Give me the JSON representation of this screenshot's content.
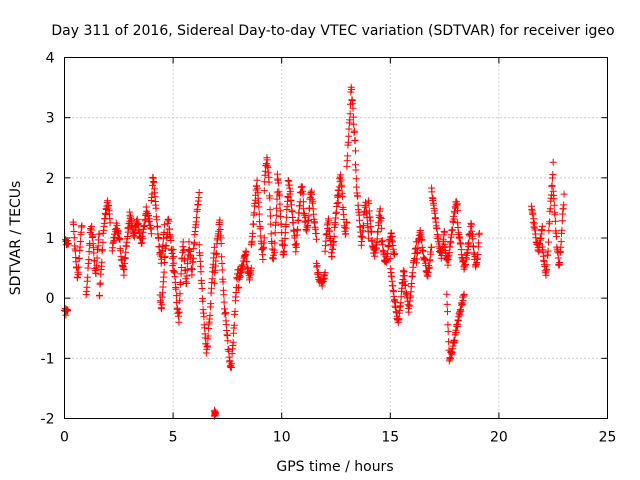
{
  "chart_data": {
    "type": "scatter",
    "title": "Day 311 of 2016, Sidereal Day-to-day VTEC variation (SDTVAR) for receiver igeo",
    "xlabel": "GPS time / hours",
    "ylabel": "SDTVAR / TECUs",
    "xlim": [
      0,
      25
    ],
    "ylim": [
      -2,
      4
    ],
    "xticks": [
      0,
      5,
      10,
      15,
      20,
      25
    ],
    "yticks": [
      -2,
      -1,
      0,
      1,
      2,
      3,
      4
    ],
    "grid": true,
    "marker": "plus",
    "color": "#ff0000",
    "segments": [
      {
        "x0": 0.0,
        "x1": 0.15,
        "y": [
          -0.22,
          -0.25
        ]
      },
      {
        "x0": 0.05,
        "x1": 0.18,
        "y": [
          0.95,
          0.9
        ]
      },
      {
        "x0": 0.4,
        "x1": 0.8,
        "y": [
          1.3,
          0.9,
          0.6,
          0.3,
          0.6,
          0.95,
          1.2
        ]
      },
      {
        "x0": 1.0,
        "x1": 1.6,
        "y": [
          0.1,
          0.4,
          0.9,
          1.2,
          1.0,
          0.6,
          0.4,
          0.8,
          1.1
        ]
      },
      {
        "x0": 1.6,
        "x1": 2.1,
        "y": [
          0.0,
          0.4,
          0.8,
          1.2,
          1.4,
          1.6,
          1.5,
          1.3
        ]
      },
      {
        "x0": 2.2,
        "x1": 3.0,
        "y": [
          0.8,
          1.0,
          1.2,
          1.1,
          0.9,
          0.6,
          0.4,
          0.8,
          1.1,
          1.3
        ]
      },
      {
        "x0": 3.0,
        "x1": 4.0,
        "y": [
          1.4,
          1.2,
          1.0,
          1.3,
          1.1,
          0.9,
          1.2,
          1.5,
          1.3,
          1.1
        ]
      },
      {
        "x0": 4.0,
        "x1": 4.6,
        "y": [
          1.6,
          2.0,
          1.8,
          1.4,
          1.1,
          0.8,
          0.6,
          0.9,
          1.2
        ]
      },
      {
        "x0": 4.4,
        "x1": 5.0,
        "y": [
          0.0,
          -0.2,
          0.3,
          0.7,
          1.0,
          1.3,
          1.1,
          0.8,
          0.5
        ]
      },
      {
        "x0": 5.0,
        "x1": 5.6,
        "y": [
          0.8,
          0.4,
          0.1,
          -0.2,
          -0.4,
          0.2,
          0.6,
          0.9,
          0.6,
          0.3
        ]
      },
      {
        "x0": 5.6,
        "x1": 6.2,
        "y": [
          0.2,
          0.6,
          0.9,
          0.7,
          0.4,
          0.7,
          1.0,
          1.3,
          1.5,
          1.7
        ]
      },
      {
        "x0": 6.2,
        "x1": 6.9,
        "y": [
          0.9,
          0.5,
          0.1,
          -0.3,
          -0.7,
          -0.9,
          -0.6,
          -0.3,
          0.1,
          0.5,
          0.8
        ]
      },
      {
        "x0": 6.9,
        "x1": 7.4,
        "y": [
          0.3,
          0.6,
          0.9,
          1.1,
          1.3,
          0.9,
          0.4,
          0.0,
          -0.3
        ]
      },
      {
        "x0": 7.4,
        "x1": 8.0,
        "y": [
          -0.2,
          -0.5,
          -0.8,
          -1.0,
          -1.2,
          -0.9,
          -0.5,
          -0.1,
          0.3,
          0.5
        ]
      },
      {
        "x0": 6.9,
        "x1": 6.95,
        "y": [
          -1.9,
          -1.88
        ]
      },
      {
        "x0": 8.0,
        "x1": 8.6,
        "y": [
          0.2,
          0.4,
          0.5,
          0.6,
          0.8,
          0.5,
          0.3,
          0.5
        ]
      },
      {
        "x0": 8.6,
        "x1": 9.2,
        "y": [
          0.9,
          1.1,
          1.4,
          1.7,
          1.9,
          1.6,
          1.2,
          0.9,
          0.7,
          1.0
        ]
      },
      {
        "x0": 9.2,
        "x1": 9.8,
        "y": [
          1.8,
          2.2,
          2.3,
          2.0,
          1.5,
          1.0,
          0.6,
          0.8,
          1.3,
          1.8
        ]
      },
      {
        "x0": 9.8,
        "x1": 10.3,
        "y": [
          2.1,
          1.8,
          1.4,
          1.0,
          0.7,
          1.0,
          1.4,
          1.7
        ]
      },
      {
        "x0": 10.3,
        "x1": 11.0,
        "y": [
          2.0,
          1.8,
          1.6,
          1.3,
          1.0,
          0.8,
          1.1,
          1.4,
          1.7,
          1.9,
          1.6
        ]
      },
      {
        "x0": 11.0,
        "x1": 11.6,
        "y": [
          1.5,
          1.3,
          1.1,
          1.3,
          1.6,
          1.8,
          1.5,
          1.2,
          1.0
        ]
      },
      {
        "x0": 11.6,
        "x1": 12.0,
        "y": [
          0.6,
          0.4,
          0.3,
          0.2,
          0.3,
          0.4
        ]
      },
      {
        "x0": 12.0,
        "x1": 12.6,
        "y": [
          0.8,
          1.1,
          1.3,
          1.0,
          0.7,
          0.9,
          1.2,
          1.5,
          1.8
        ]
      },
      {
        "x0": 12.6,
        "x1": 13.0,
        "y": [
          1.6,
          1.9,
          2.1,
          1.8,
          1.5,
          1.2,
          1.0,
          1.3
        ]
      },
      {
        "x0": 13.0,
        "x1": 13.4,
        "y": [
          2.2,
          2.6,
          3.0,
          3.5,
          3.2,
          2.8,
          2.5
        ]
      },
      {
        "x0": 13.4,
        "x1": 14.0,
        "y": [
          2.2,
          1.8,
          1.5,
          1.2,
          0.9,
          1.1,
          1.4,
          1.6,
          1.3,
          1.0
        ]
      },
      {
        "x0": 14.0,
        "x1": 14.6,
        "y": [
          1.6,
          1.3,
          1.0,
          0.8,
          0.7,
          0.9,
          1.2,
          1.5,
          1.2
        ]
      },
      {
        "x0": 14.6,
        "x1": 15.2,
        "y": [
          1.0,
          0.8,
          0.6,
          0.7,
          0.9,
          1.1,
          0.9,
          0.7
        ]
      },
      {
        "x0": 15.0,
        "x1": 15.6,
        "y": [
          0.6,
          0.3,
          0.1,
          -0.1,
          -0.3,
          -0.4,
          -0.2,
          0.1,
          0.4
        ]
      },
      {
        "x0": 15.6,
        "x1": 16.2,
        "y": [
          0.5,
          0.2,
          0.0,
          -0.2,
          0.1,
          0.4,
          0.7,
          0.9
        ]
      },
      {
        "x0": 16.2,
        "x1": 16.9,
        "y": [
          0.6,
          0.9,
          1.1,
          0.9,
          0.7,
          0.5,
          0.4,
          0.6,
          0.9
        ]
      },
      {
        "x0": 16.9,
        "x1": 17.5,
        "y": [
          1.8,
          1.6,
          1.4,
          1.2,
          1.0,
          0.8,
          0.7,
          0.9,
          1.1
        ]
      },
      {
        "x0": 17.5,
        "x1": 18.1,
        "y": [
          0.9,
          0.7,
          0.6,
          0.8,
          1.0,
          1.2,
          1.4,
          1.6,
          1.5
        ]
      },
      {
        "x0": 17.6,
        "x1": 18.4,
        "y": [
          0.1,
          -1.05,
          -0.9,
          -0.7,
          -0.5,
          -0.3,
          -0.1,
          0.1
        ]
      },
      {
        "x0": 18.1,
        "x1": 18.6,
        "y": [
          1.2,
          1.0,
          0.8,
          0.6,
          0.5,
          0.7,
          0.9
        ]
      },
      {
        "x0": 18.6,
        "x1": 19.1,
        "y": [
          0.9,
          1.1,
          1.2,
          1.0,
          0.8,
          0.6,
          0.5,
          0.8,
          1.1
        ]
      },
      {
        "x0": 21.5,
        "x1": 22.0,
        "y": [
          1.5,
          1.3,
          1.1,
          0.9,
          0.8,
          1.0,
          1.2
        ]
      },
      {
        "x0": 22.0,
        "x1": 22.5,
        "y": [
          0.9,
          0.7,
          0.5,
          0.4,
          0.6,
          0.9,
          1.3,
          1.6,
          1.9,
          2.2
        ]
      },
      {
        "x0": 22.5,
        "x1": 23.0,
        "y": [
          1.8,
          1.5,
          1.2,
          0.9,
          0.7,
          0.5,
          0.8,
          1.1,
          1.4,
          1.7
        ]
      }
    ]
  }
}
